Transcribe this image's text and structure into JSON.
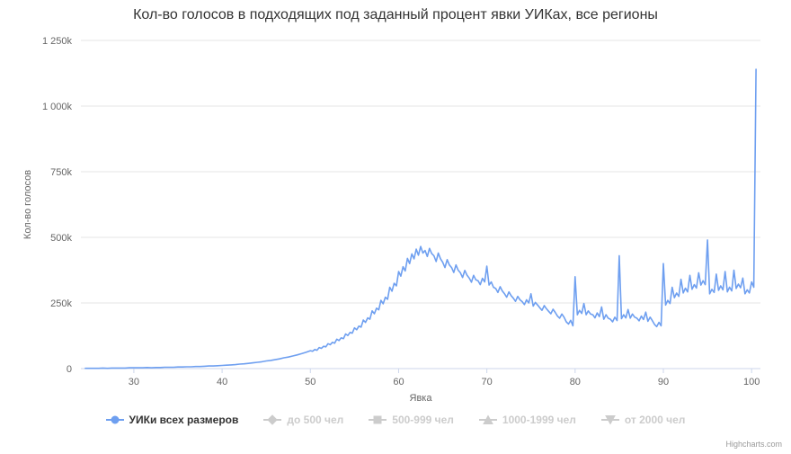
{
  "credits": {
    "label": "Highcharts.com"
  },
  "legend": {
    "items": [
      {
        "label": "УИКи всех размеров",
        "marker": "circle",
        "color": "#6e9ff0",
        "enabled": true
      },
      {
        "label": "до 500 чел",
        "marker": "diamond",
        "color": "#cccccc",
        "enabled": false
      },
      {
        "label": "500-999 чел",
        "marker": "square",
        "color": "#cccccc",
        "enabled": false
      },
      {
        "label": "1000-1999 чел",
        "marker": "triangle",
        "color": "#cccccc",
        "enabled": false
      },
      {
        "label": "от 2000 чел",
        "marker": "triangle-down",
        "color": "#cccccc",
        "enabled": false
      }
    ]
  },
  "chart_data": {
    "type": "line",
    "title": "Кол-во голосов в подходящих под заданный процент явки УИКах, все регионы",
    "xlabel": "Явка",
    "ylabel": "Кол-во голосов",
    "xlim": [
      24,
      101
    ],
    "ylim": [
      0,
      1250
    ],
    "y_unit": "thousands of votes (k)",
    "grid": "horizontal",
    "legend_position": "bottom",
    "xticks": [
      30,
      40,
      50,
      60,
      70,
      80,
      90,
      100
    ],
    "yticks": [
      {
        "v": 0,
        "label": "0"
      },
      {
        "v": 250,
        "label": "250k"
      },
      {
        "v": 500,
        "label": "500k"
      },
      {
        "v": 750,
        "label": "750k"
      },
      {
        "v": 1000,
        "label": "1 000k"
      },
      {
        "v": 1250,
        "label": "1 250k"
      }
    ],
    "series": [
      {
        "name": "УИКи всех размеров",
        "color": "#6e9ff0",
        "points": [
          [
            24.5,
            1
          ],
          [
            25,
            1
          ],
          [
            25.5,
            1
          ],
          [
            26,
            1
          ],
          [
            26.5,
            2
          ],
          [
            27,
            1
          ],
          [
            27.5,
            2
          ],
          [
            28,
            2
          ],
          [
            28.5,
            2
          ],
          [
            29,
            2
          ],
          [
            29.5,
            3
          ],
          [
            30,
            3
          ],
          [
            30.5,
            3
          ],
          [
            31,
            3
          ],
          [
            31.5,
            4
          ],
          [
            32,
            3
          ],
          [
            32.5,
            4
          ],
          [
            33,
            4
          ],
          [
            33.5,
            5
          ],
          [
            34,
            5
          ],
          [
            34.5,
            5
          ],
          [
            35,
            6
          ],
          [
            35.5,
            6
          ],
          [
            36,
            7
          ],
          [
            36.5,
            7
          ],
          [
            37,
            8
          ],
          [
            37.5,
            8
          ],
          [
            38,
            9
          ],
          [
            38.5,
            10
          ],
          [
            39,
            10
          ],
          [
            39.5,
            11
          ],
          [
            40,
            12
          ],
          [
            40.5,
            13
          ],
          [
            41,
            14
          ],
          [
            41.5,
            15
          ],
          [
            42,
            17
          ],
          [
            42.5,
            18
          ],
          [
            43,
            20
          ],
          [
            43.5,
            22
          ],
          [
            44,
            24
          ],
          [
            44.5,
            26
          ],
          [
            45,
            29
          ],
          [
            45.5,
            31
          ],
          [
            46,
            34
          ],
          [
            46.5,
            37
          ],
          [
            47,
            41
          ],
          [
            47.5,
            44
          ],
          [
            48,
            48
          ],
          [
            48.5,
            52
          ],
          [
            49,
            57
          ],
          [
            49.5,
            62
          ],
          [
            50,
            68
          ],
          [
            50.25,
            66
          ],
          [
            50.5,
            73
          ],
          [
            50.75,
            70
          ],
          [
            51,
            80
          ],
          [
            51.25,
            77
          ],
          [
            51.5,
            85
          ],
          [
            51.75,
            83
          ],
          [
            52,
            95
          ],
          [
            52.25,
            91
          ],
          [
            52.5,
            100
          ],
          [
            52.75,
            97
          ],
          [
            53,
            112
          ],
          [
            53.25,
            107
          ],
          [
            53.5,
            117
          ],
          [
            53.75,
            114
          ],
          [
            54,
            132
          ],
          [
            54.25,
            126
          ],
          [
            54.5,
            138
          ],
          [
            54.75,
            135
          ],
          [
            55,
            155
          ],
          [
            55.25,
            148
          ],
          [
            55.5,
            162
          ],
          [
            55.75,
            158
          ],
          [
            56,
            185
          ],
          [
            56.25,
            176
          ],
          [
            56.5,
            193
          ],
          [
            56.75,
            188
          ],
          [
            57,
            220
          ],
          [
            57.25,
            209
          ],
          [
            57.5,
            230
          ],
          [
            57.75,
            224
          ],
          [
            58,
            260
          ],
          [
            58.25,
            247
          ],
          [
            58.5,
            272
          ],
          [
            58.75,
            264
          ],
          [
            59,
            310
          ],
          [
            59.25,
            295
          ],
          [
            59.5,
            325
          ],
          [
            59.75,
            315
          ],
          [
            60,
            370
          ],
          [
            60.25,
            352
          ],
          [
            60.5,
            388
          ],
          [
            60.75,
            372
          ],
          [
            61,
            420
          ],
          [
            61.25,
            400
          ],
          [
            61.5,
            437
          ],
          [
            61.75,
            418
          ],
          [
            62,
            455
          ],
          [
            62.25,
            432
          ],
          [
            62.5,
            465
          ],
          [
            62.75,
            440
          ],
          [
            63,
            450
          ],
          [
            63.25,
            427
          ],
          [
            63.5,
            458
          ],
          [
            63.75,
            438
          ],
          [
            64,
            430
          ],
          [
            64.25,
            408
          ],
          [
            64.5,
            440
          ],
          [
            64.75,
            418
          ],
          [
            65,
            405
          ],
          [
            65.25,
            385
          ],
          [
            65.5,
            415
          ],
          [
            65.75,
            395
          ],
          [
            66,
            385
          ],
          [
            66.25,
            366
          ],
          [
            66.5,
            395
          ],
          [
            66.75,
            375
          ],
          [
            67,
            365
          ],
          [
            67.25,
            347
          ],
          [
            67.5,
            374
          ],
          [
            67.75,
            356
          ],
          [
            68,
            345
          ],
          [
            68.25,
            329
          ],
          [
            68.5,
            355
          ],
          [
            68.75,
            338
          ],
          [
            69,
            335
          ],
          [
            69.25,
            320
          ],
          [
            69.5,
            344
          ],
          [
            69.75,
            330
          ],
          [
            70,
            390
          ],
          [
            70.25,
            318
          ],
          [
            70.5,
            330
          ],
          [
            70.75,
            310
          ],
          [
            71,
            305
          ],
          [
            71.25,
            290
          ],
          [
            71.5,
            312
          ],
          [
            71.75,
            296
          ],
          [
            72,
            285
          ],
          [
            72.25,
            272
          ],
          [
            72.5,
            292
          ],
          [
            72.75,
            278
          ],
          [
            73,
            268
          ],
          [
            73.25,
            256
          ],
          [
            73.5,
            275
          ],
          [
            73.75,
            262
          ],
          [
            74,
            255
          ],
          [
            74.25,
            244
          ],
          [
            74.5,
            262
          ],
          [
            74.75,
            250
          ],
          [
            75,
            285
          ],
          [
            75.25,
            238
          ],
          [
            75.5,
            252
          ],
          [
            75.75,
            242
          ],
          [
            76,
            232
          ],
          [
            76.25,
            222
          ],
          [
            76.5,
            240
          ],
          [
            76.75,
            228
          ],
          [
            77,
            218
          ],
          [
            77.25,
            209
          ],
          [
            77.5,
            226
          ],
          [
            77.75,
            214
          ],
          [
            78,
            200
          ],
          [
            78.25,
            192
          ],
          [
            78.5,
            208
          ],
          [
            78.75,
            196
          ],
          [
            79,
            178
          ],
          [
            79.25,
            170
          ],
          [
            79.5,
            184
          ],
          [
            79.75,
            163
          ],
          [
            80,
            350
          ],
          [
            80.25,
            205
          ],
          [
            80.5,
            222
          ],
          [
            80.75,
            210
          ],
          [
            81,
            248
          ],
          [
            81.25,
            205
          ],
          [
            81.5,
            220
          ],
          [
            81.75,
            208
          ],
          [
            82,
            205
          ],
          [
            82.25,
            193
          ],
          [
            82.5,
            212
          ],
          [
            82.75,
            198
          ],
          [
            83,
            235
          ],
          [
            83.25,
            188
          ],
          [
            83.5,
            205
          ],
          [
            83.75,
            192
          ],
          [
            84,
            188
          ],
          [
            84.25,
            178
          ],
          [
            84.5,
            196
          ],
          [
            84.75,
            183
          ],
          [
            85,
            430
          ],
          [
            85.25,
            190
          ],
          [
            85.5,
            205
          ],
          [
            85.75,
            193
          ],
          [
            86,
            225
          ],
          [
            86.25,
            192
          ],
          [
            86.5,
            208
          ],
          [
            86.75,
            196
          ],
          [
            87,
            192
          ],
          [
            87.25,
            182
          ],
          [
            87.5,
            200
          ],
          [
            87.75,
            187
          ],
          [
            88,
            215
          ],
          [
            88.25,
            180
          ],
          [
            88.5,
            196
          ],
          [
            88.75,
            183
          ],
          [
            89,
            168
          ],
          [
            89.25,
            160
          ],
          [
            89.5,
            176
          ],
          [
            89.75,
            163
          ],
          [
            90,
            400
          ],
          [
            90.25,
            242
          ],
          [
            90.5,
            260
          ],
          [
            90.75,
            248
          ],
          [
            91,
            310
          ],
          [
            91.25,
            270
          ],
          [
            91.5,
            288
          ],
          [
            91.75,
            275
          ],
          [
            92,
            340
          ],
          [
            92.25,
            288
          ],
          [
            92.5,
            306
          ],
          [
            92.75,
            292
          ],
          [
            93,
            355
          ],
          [
            93.25,
            302
          ],
          [
            93.5,
            320
          ],
          [
            93.75,
            307
          ],
          [
            94,
            365
          ],
          [
            94.25,
            318
          ],
          [
            94.5,
            335
          ],
          [
            94.75,
            320
          ],
          [
            95,
            490
          ],
          [
            95.25,
            285
          ],
          [
            95.5,
            302
          ],
          [
            95.75,
            290
          ],
          [
            96,
            360
          ],
          [
            96.25,
            298
          ],
          [
            96.5,
            315
          ],
          [
            96.75,
            300
          ],
          [
            97,
            370
          ],
          [
            97.25,
            292
          ],
          [
            97.5,
            310
          ],
          [
            97.75,
            296
          ],
          [
            98,
            375
          ],
          [
            98.25,
            305
          ],
          [
            98.5,
            322
          ],
          [
            98.75,
            308
          ],
          [
            99,
            345
          ],
          [
            99.25,
            285
          ],
          [
            99.5,
            300
          ],
          [
            99.75,
            288
          ],
          [
            100,
            330
          ],
          [
            100.25,
            310
          ],
          [
            100.5,
            1140
          ]
        ]
      }
    ],
    "hidden_series": [
      "до 500 чел",
      "500-999 чел",
      "1000-1999 чел",
      "от 2000 чел"
    ]
  }
}
